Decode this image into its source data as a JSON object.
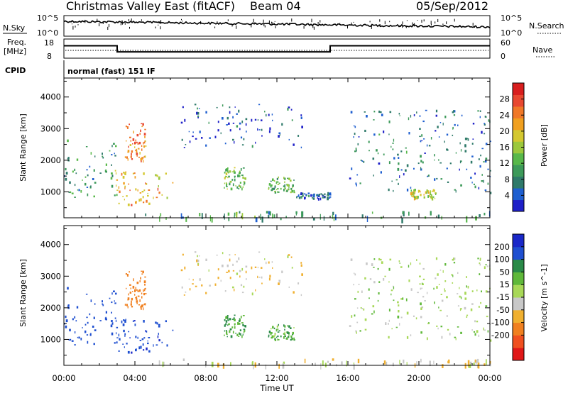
{
  "header": {
    "title": "Christmas Valley East (fitACF)",
    "beam": "Beam 04",
    "date": "05/Sep/2012"
  },
  "colors": {
    "noise_line": "#000000",
    "sky_dots": "#000000"
  },
  "top_panels": {
    "nsky": {
      "label": "N.Sky",
      "left_ticks": [
        "10^5",
        "10^0"
      ],
      "right_label": "N.Search",
      "right_ticks": [
        "10^5",
        "10^0"
      ]
    },
    "freq": {
      "label_line1": "Freq.",
      "label_line2": "[MHz]",
      "left_ticks": [
        "18",
        "8"
      ],
      "right_label": "Nave",
      "right_ticks": [
        "60",
        "0"
      ],
      "series": {
        "hours": [
          0,
          3,
          3,
          15,
          15,
          24
        ],
        "values": [
          14.5,
          14.5,
          11.3,
          11.3,
          14.5,
          14.5
        ]
      }
    },
    "cpid": {
      "label": "CPID",
      "value": "normal (fast) 151 IF"
    }
  },
  "chart_data": [
    {
      "type": "heatmap",
      "title": "",
      "xlabel": "Time UT",
      "ylabel": "Slant Range [km]",
      "xticks": [
        "00:00",
        "04:00",
        "08:00",
        "12:00",
        "16:00",
        "20:00",
        "00:00"
      ],
      "xlim_hours": [
        0,
        24
      ],
      "ylim": [
        180,
        4600
      ],
      "yticks": [
        1000,
        2000,
        3000,
        4000
      ],
      "colorbar": {
        "label": "Power [dB]",
        "ticks": [
          4,
          8,
          12,
          16,
          20,
          24,
          28
        ],
        "range": [
          0,
          32
        ],
        "colors": [
          "#1e20c8",
          "#1f5fd0",
          "#2f7a6a",
          "#3d9a5a",
          "#58b84a",
          "#9cc83c",
          "#d4c830",
          "#f0a020",
          "#f07828",
          "#e84830",
          "#d81e1e"
        ]
      },
      "regions": [
        {
          "name": "morning-echo-1",
          "start_hour": 0.0,
          "end_hour": 3.0,
          "min_range": 800,
          "max_range": 2700,
          "power_db": 9
        },
        {
          "name": "morning-echo-2",
          "start_hour": 2.8,
          "end_hour": 6.2,
          "min_range": 600,
          "max_range": 1700,
          "power_db": 22
        },
        {
          "name": "morning-echo-3",
          "start_hour": 3.4,
          "end_hour": 4.6,
          "min_range": 2000,
          "max_range": 3200,
          "power_db": 24
        },
        {
          "name": "midday-arc",
          "start_hour": 6.5,
          "end_hour": 13.5,
          "min_range": 2400,
          "max_range": 3800,
          "power_db": 5
        },
        {
          "name": "midday-patch-1",
          "start_hour": 9.0,
          "end_hour": 10.2,
          "min_range": 1100,
          "max_range": 1800,
          "power_db": 14
        },
        {
          "name": "midday-patch-2",
          "start_hour": 11.5,
          "end_hour": 13.0,
          "min_range": 1000,
          "max_range": 1500,
          "power_db": 12
        },
        {
          "name": "afternoon-band",
          "start_hour": 13.0,
          "end_hour": 15.0,
          "min_range": 800,
          "max_range": 1000,
          "power_db": 6
        },
        {
          "name": "evening-streaks",
          "start_hour": 16.0,
          "end_hour": 24.0,
          "min_range": 1000,
          "max_range": 3600,
          "power_db": 7
        },
        {
          "name": "evening-patch",
          "start_hour": 19.5,
          "end_hour": 21.0,
          "min_range": 800,
          "max_range": 1100,
          "power_db": 18
        },
        {
          "name": "ground-scatter-band",
          "start_hour": 4.5,
          "end_hour": 24.0,
          "min_range": 180,
          "max_range": 400,
          "power_db": 10
        }
      ]
    },
    {
      "type": "heatmap",
      "title": "",
      "xlabel": "Time UT",
      "ylabel": "Slant Range [km]",
      "xticks": [
        "00:00",
        "04:00",
        "08:00",
        "12:00",
        "16:00",
        "20:00",
        "00:00"
      ],
      "xlim_hours": [
        0,
        24
      ],
      "ylim": [
        180,
        4600
      ],
      "yticks": [
        1000,
        2000,
        3000,
        4000
      ],
      "colorbar": {
        "label": "Velocity [m s^-1]",
        "ticks": [
          200,
          100,
          50,
          15,
          -15,
          -50,
          -100,
          -200
        ],
        "colors": [
          "#1a28c8",
          "#1f4fd0",
          "#2a8a48",
          "#5fb83a",
          "#a8d858",
          "#c8c8c8",
          "#f0b030",
          "#f08020",
          "#f05020",
          "#e01818"
        ]
      },
      "regions": [
        {
          "name": "morning-echo-1",
          "start_hour": 0.0,
          "end_hour": 3.0,
          "min_range": 800,
          "max_range": 2700,
          "velocity": 150
        },
        {
          "name": "morning-echo-2",
          "start_hour": 2.8,
          "end_hour": 6.2,
          "min_range": 600,
          "max_range": 1700,
          "velocity": 180
        },
        {
          "name": "morning-echo-3",
          "start_hour": 3.4,
          "end_hour": 4.6,
          "min_range": 2000,
          "max_range": 3200,
          "velocity": -150
        },
        {
          "name": "midday-arc",
          "start_hour": 6.5,
          "end_hour": 13.5,
          "min_range": 2400,
          "max_range": 3800,
          "velocity": -40
        },
        {
          "name": "midday-patch-1",
          "start_hour": 9.0,
          "end_hour": 10.2,
          "min_range": 1100,
          "max_range": 1800,
          "velocity": 60
        },
        {
          "name": "midday-patch-2",
          "start_hour": 11.5,
          "end_hour": 13.0,
          "min_range": 1000,
          "max_range": 1500,
          "velocity": 40
        },
        {
          "name": "evening-streaks",
          "start_hour": 16.0,
          "end_hour": 24.0,
          "min_range": 1000,
          "max_range": 3600,
          "velocity": 0
        },
        {
          "name": "ground-scatter-band",
          "start_hour": 4.5,
          "end_hour": 24.0,
          "min_range": 180,
          "max_range": 400,
          "velocity": -30
        }
      ]
    }
  ]
}
